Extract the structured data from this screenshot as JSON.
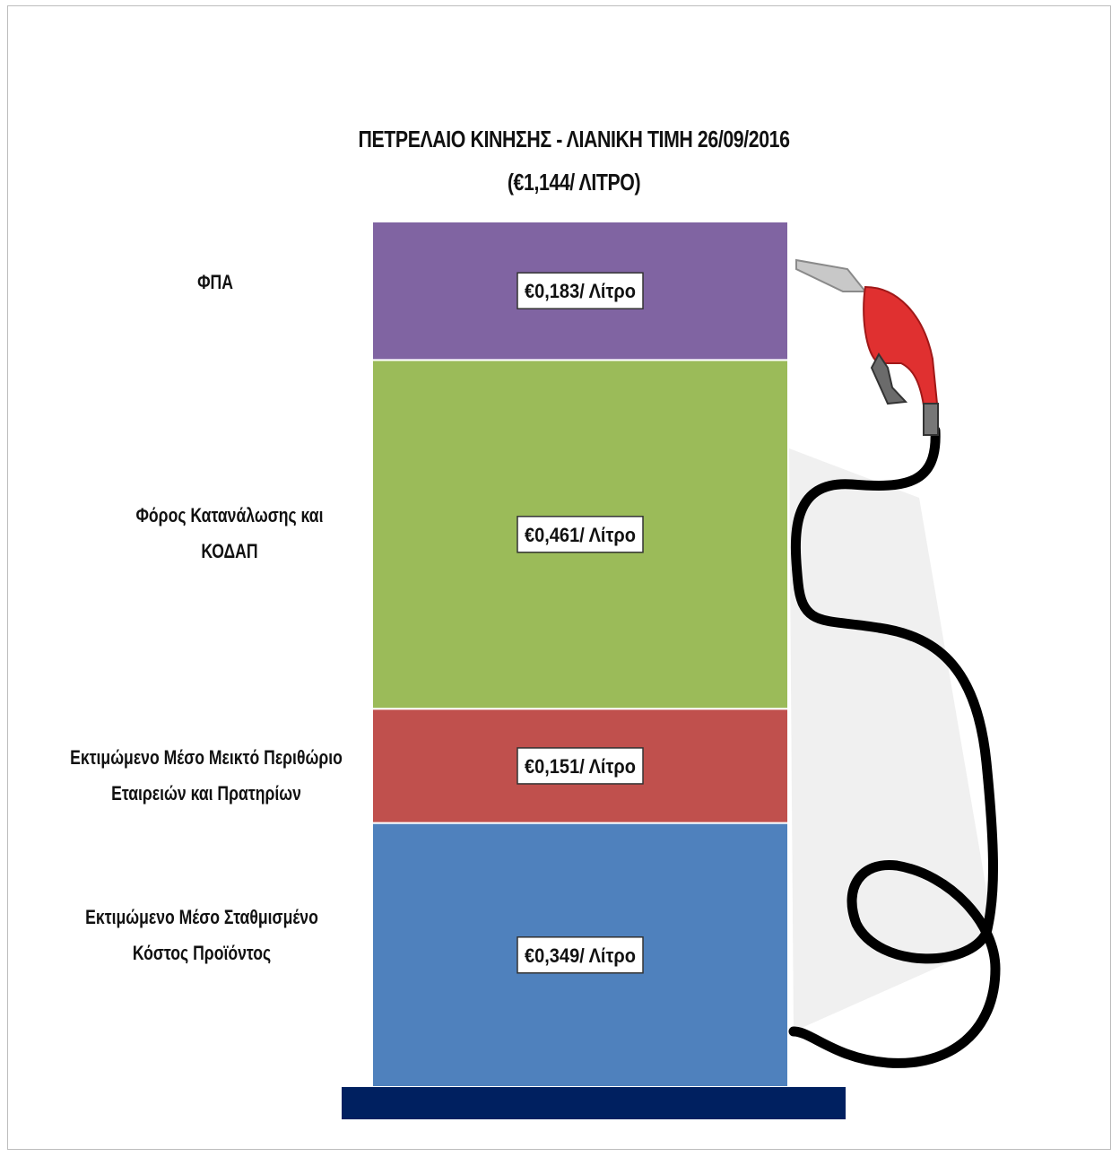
{
  "chart_data": {
    "type": "bar",
    "stacked": true,
    "title": "ΠΕΤΡΕΛΑΙΟ ΚΙΝΗΣΗΣ - ΛΙΑΝΙΚΗ ΤΙΜΗ  26/09/2016",
    "subtitle": "(€1,144/ ΛΙΤΡΟ)",
    "total": 1.144,
    "unit": "€/Λίτρο",
    "segments_bottom_to_top": [
      {
        "label": "Εκτιμώμενο Μέσο Σταθμισμένο Κόστος Προϊόντος",
        "value": 0.349,
        "value_label": "€0,349/ Λίτρο",
        "color": "#4f81bd"
      },
      {
        "label": "Εκτιμώμενο Μέσο Μεικτό Περιθώριο Εταιρειών και Πρατηρίων",
        "value": 0.151,
        "value_label": "€0,151/ Λίτρο",
        "color": "#c0504d"
      },
      {
        "label": "Φόρος Κατανάλωσης και ΚΟΔΑΠ",
        "value": 0.461,
        "value_label": "€0,461/ Λίτρο",
        "color": "#9bbb59"
      },
      {
        "label": "ΦΠΑ",
        "value": 0.183,
        "value_label": "€0,183/ Λίτρο",
        "color": "#8064a2"
      }
    ],
    "legend": "none",
    "grid": false
  },
  "decor": {
    "base_color": "#002060",
    "hose_color": "#000000",
    "nozzle_color": "#e03030",
    "icon": "fuel-nozzle-icon"
  }
}
